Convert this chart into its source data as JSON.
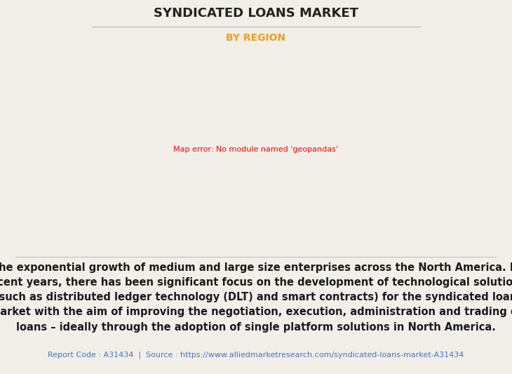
{
  "title": "SYNDICATED LOANS MARKET",
  "subtitle": "BY REGION",
  "subtitle_color": "#E8A020",
  "title_color": "#222222",
  "background_color": "#F2EFE9",
  "description_line1": "The exponential growth of medium and large size enterprises across the North America. In",
  "description_line2": "recent years, there has been significant focus on the development of technological solutions",
  "description_line3": "(such as distributed ledger technology (DLT) and smart contracts) for the syndicated loan",
  "description_line4": "market with the aim of improving the negotiation, execution, administration and trading of",
  "description_line5": "loans – ideally through the adoption of single platform solutions in North America.",
  "footer": "Report Code : A31434  |  Source : https://www.alliedmarketresearch.com/syndicated-loans-market-A31434",
  "footer_color": "#4472C4",
  "map_land_color": "#8FBC8F",
  "map_highlight_color": "#FFFFFF",
  "map_border_color": "#5588AA",
  "map_shadow_color": "#999999",
  "separator_color": "#BBBBBB",
  "desc_fontsize": 10.5,
  "footer_fontsize": 8,
  "title_fontsize": 13,
  "subtitle_fontsize": 10
}
